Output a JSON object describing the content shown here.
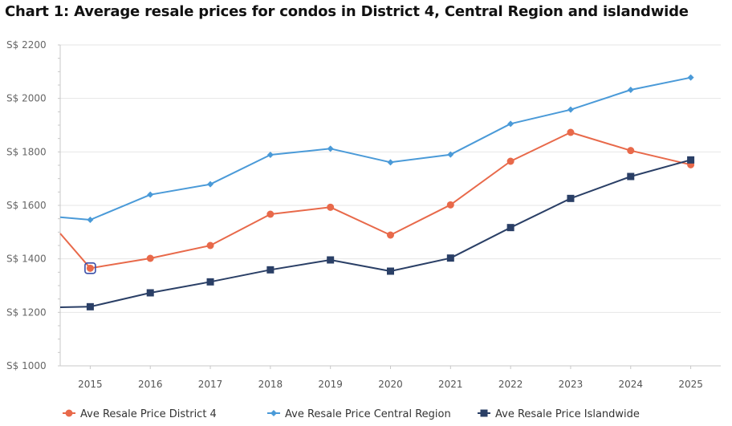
{
  "chart_data": {
    "type": "line",
    "title": "Chart 1: Average resale prices for condos in District 4, Central Region and islandwide",
    "ylim": [
      1000,
      2200
    ],
    "y_ticks": [
      1000,
      1200,
      1400,
      1600,
      1800,
      2000,
      2200
    ],
    "y_tick_labels": [
      "S$ 1000",
      "S$ 1200",
      "S$ 1400",
      "S$ 1600",
      "S$ 1800",
      "S$ 2000",
      "S$ 2200"
    ],
    "x": [
      2015,
      2016,
      2017,
      2018,
      2019,
      2020,
      2021,
      2022,
      2023,
      2024,
      2025
    ],
    "x_tick_labels": [
      "2015",
      "2016",
      "2017",
      "2018",
      "2019",
      "2020",
      "2021",
      "2022",
      "2023",
      "2024",
      "2025"
    ],
    "grid": true,
    "legend_position": "bottom",
    "series": [
      {
        "name": "Ave Resale Price District 4",
        "color": "#e8694a",
        "marker": "circle",
        "values": [
          1365,
          1402,
          1450,
          1567,
          1593,
          1489,
          1602,
          1765,
          1873,
          1805,
          1752
        ]
      },
      {
        "name": "Ave Resale Price Central Region",
        "color": "#4a9ad8",
        "marker": "diamond",
        "values": [
          1546,
          1640,
          1679,
          1789,
          1812,
          1761,
          1790,
          1905,
          1958,
          2032,
          2078
        ]
      },
      {
        "name": "Ave Resale Price Islandwide",
        "color": "#2a3f66",
        "marker": "square",
        "values": [
          1221,
          1273,
          1314,
          1359,
          1396,
          1354,
          1403,
          1517,
          1626,
          1708,
          1770
        ]
      }
    ],
    "highlighted_point": {
      "series": 0,
      "index": 0
    }
  }
}
